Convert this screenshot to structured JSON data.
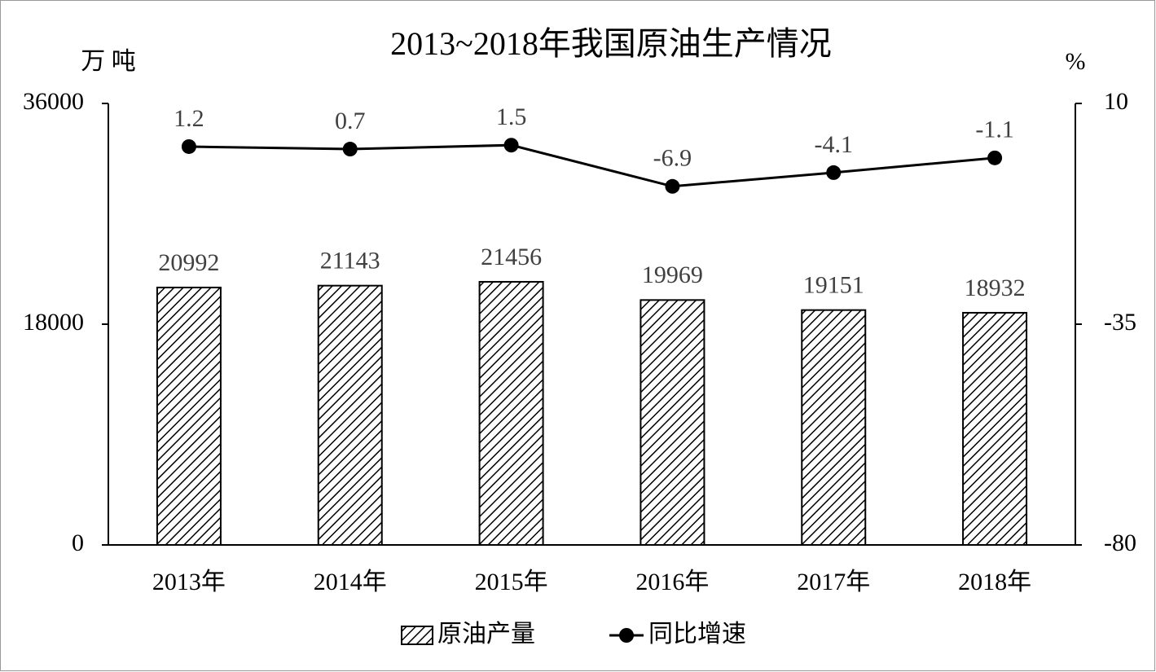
{
  "chart_data": {
    "type": "bar",
    "title": "2013~2018年我国原油生产情况",
    "y_label": "万 吨",
    "y2_label": "%",
    "categories": [
      "2013年",
      "2014年",
      "2015年",
      "2016年",
      "2017年",
      "2018年"
    ],
    "series": [
      {
        "name": "原油产量",
        "type": "bar",
        "color": "#000000",
        "pattern": "hatch",
        "values": [
          20992,
          21143,
          21456,
          19969,
          19151,
          18932
        ]
      },
      {
        "name": "同比增速",
        "type": "line",
        "axis": "y2",
        "color": "#000000",
        "values": [
          1.2,
          0.7,
          1.5,
          -6.9,
          -4.1,
          -1.1
        ]
      }
    ],
    "ylim": [
      0,
      36000
    ],
    "yticks": [
      0,
      18000,
      36000
    ],
    "y2lim": [
      -80,
      10
    ],
    "y2ticks": [
      -80,
      -35,
      10
    ],
    "grid": false,
    "legend": "bottom"
  }
}
